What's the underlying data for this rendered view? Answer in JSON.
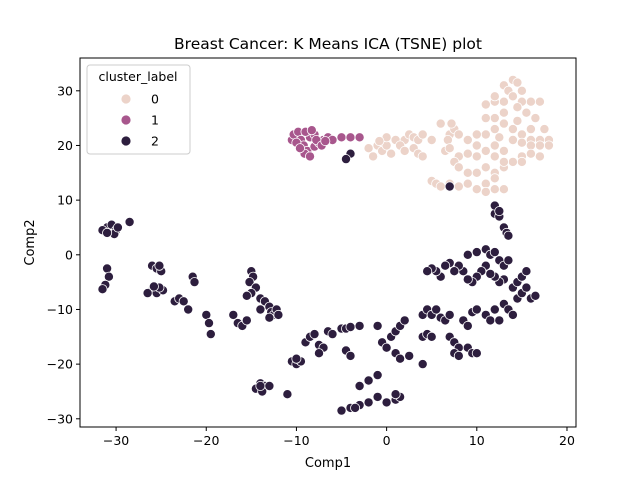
{
  "chart_data": {
    "type": "scatter",
    "title": "Breast Cancer: K Means ICA (TSNE) plot",
    "xlabel": "Comp1",
    "ylabel": "Comp2",
    "xlim": [
      -34,
      21
    ],
    "ylim": [
      -31.5,
      36
    ],
    "xticks": [
      -30,
      -20,
      -10,
      0,
      10,
      20
    ],
    "yticks": [
      -30,
      -20,
      -10,
      0,
      10,
      20,
      30
    ],
    "grid": false,
    "legend": {
      "title": "cluster_label",
      "placement": "upper-left"
    },
    "series": [
      {
        "name": "0",
        "color": "#ecd3c9",
        "points": [
          [
            13,
            31
          ],
          [
            14,
            32
          ],
          [
            14.5,
            31.5
          ],
          [
            13.5,
            30
          ],
          [
            15,
            30
          ],
          [
            14,
            29
          ],
          [
            13,
            28
          ],
          [
            12,
            28
          ],
          [
            11,
            27.5
          ],
          [
            12,
            29
          ],
          [
            15,
            28
          ],
          [
            14.5,
            27
          ],
          [
            13,
            26
          ],
          [
            16,
            28
          ],
          [
            17,
            28
          ],
          [
            15.5,
            26
          ],
          [
            16.5,
            25
          ],
          [
            17.5,
            23
          ],
          [
            16,
            23
          ],
          [
            15,
            22
          ],
          [
            14,
            21
          ],
          [
            16,
            21
          ],
          [
            17,
            21
          ],
          [
            18,
            21
          ],
          [
            18,
            20
          ],
          [
            17,
            20
          ],
          [
            16,
            20
          ],
          [
            15,
            20.5
          ],
          [
            14,
            23
          ],
          [
            13,
            24
          ],
          [
            12,
            25
          ],
          [
            11,
            25
          ],
          [
            12,
            23
          ],
          [
            11,
            22
          ],
          [
            10,
            22
          ],
          [
            9,
            21
          ],
          [
            10,
            20
          ],
          [
            12,
            20
          ],
          [
            13,
            19
          ],
          [
            11,
            19
          ],
          [
            10,
            18
          ],
          [
            9,
            18.5
          ],
          [
            8,
            18
          ],
          [
            7.5,
            17
          ],
          [
            8,
            16
          ],
          [
            9,
            15
          ],
          [
            10,
            15
          ],
          [
            11,
            16
          ],
          [
            12,
            15
          ],
          [
            13,
            16
          ],
          [
            14,
            17
          ],
          [
            15,
            18
          ],
          [
            16,
            18.5
          ],
          [
            17,
            18
          ],
          [
            15,
            17
          ],
          [
            12,
            14
          ],
          [
            11,
            13
          ],
          [
            12,
            12
          ],
          [
            11,
            11.5
          ],
          [
            10,
            12
          ],
          [
            9,
            13
          ],
          [
            13,
            12
          ],
          [
            12,
            18
          ],
          [
            13,
            17
          ],
          [
            7,
            22
          ],
          [
            7.5,
            23
          ],
          [
            7.2,
            24
          ],
          [
            6,
            24
          ],
          [
            6.8,
            21
          ],
          [
            8,
            22
          ],
          [
            1,
            21
          ],
          [
            2,
            21
          ],
          [
            2.5,
            22
          ],
          [
            3,
            21.5
          ],
          [
            3.5,
            21
          ],
          [
            4,
            22
          ],
          [
            5,
            21
          ],
          [
            -1,
            20
          ],
          [
            -0.5,
            19
          ],
          [
            0,
            20
          ],
          [
            0.5,
            18.5
          ],
          [
            -2,
            19.5
          ],
          [
            -1.5,
            18
          ],
          [
            1.5,
            20
          ],
          [
            2,
            19
          ],
          [
            3,
            19.5
          ],
          [
            3.5,
            18.5
          ],
          [
            4,
            18
          ],
          [
            5,
            13.5
          ],
          [
            5.5,
            13
          ],
          [
            6,
            12.5
          ],
          [
            7,
            13
          ],
          [
            8,
            12.5
          ],
          [
            0,
            21.5
          ],
          [
            -0.8,
            20.8
          ],
          [
            6.5,
            19
          ],
          [
            7,
            19.5
          ],
          [
            12.5,
            21.5
          ],
          [
            14.5,
            24.5
          ]
        ]
      },
      {
        "name": "1",
        "color": "#a8578d",
        "points": [
          [
            -10.5,
            21
          ],
          [
            -10.3,
            22
          ],
          [
            -9.8,
            22.5
          ],
          [
            -9.5,
            21
          ],
          [
            -9.2,
            20
          ],
          [
            -8.5,
            21.5
          ],
          [
            -8,
            22
          ],
          [
            -8.8,
            19
          ],
          [
            -9.1,
            18.5
          ],
          [
            -8.5,
            18
          ],
          [
            -8,
            19.8
          ],
          [
            -7.5,
            20.5
          ],
          [
            -7,
            21
          ],
          [
            -6.5,
            21.5
          ],
          [
            -6,
            21
          ],
          [
            -5,
            21.5
          ],
          [
            -4,
            21.5
          ],
          [
            -3,
            21.5
          ],
          [
            -9,
            22.5
          ],
          [
            -10,
            20.5
          ],
          [
            -7.8,
            21
          ],
          [
            -8.3,
            22.8
          ],
          [
            -9.6,
            19.5
          ],
          [
            -7.2,
            20
          ],
          [
            -6.8,
            20.8
          ]
        ]
      },
      {
        "name": "2",
        "color": "#2d1e3e",
        "points": [
          [
            -31,
            5
          ],
          [
            -30.5,
            5.5
          ],
          [
            -30,
            4.5
          ],
          [
            -31.5,
            4.5
          ],
          [
            -30.2,
            3.8
          ],
          [
            -31,
            4
          ],
          [
            -29.8,
            5
          ],
          [
            -28.5,
            6
          ],
          [
            -31,
            -2.5
          ],
          [
            -30.8,
            -4
          ],
          [
            -31.2,
            -5.5
          ],
          [
            -31.5,
            -6.3
          ],
          [
            -26,
            -2
          ],
          [
            -25.5,
            -2.5
          ],
          [
            -25,
            -3
          ],
          [
            -25.2,
            -2
          ],
          [
            -26,
            -6.5
          ],
          [
            -25.5,
            -7
          ],
          [
            -24.8,
            -6.5
          ],
          [
            -25.2,
            -6
          ],
          [
            -26.5,
            -7
          ],
          [
            -25.8,
            -5.8
          ],
          [
            -23.5,
            -8.5
          ],
          [
            -23,
            -8
          ],
          [
            -22.5,
            -8.5
          ],
          [
            -21.5,
            -4
          ],
          [
            -21.3,
            -5
          ],
          [
            -20,
            -11
          ],
          [
            -19.7,
            -12.5
          ],
          [
            -19.5,
            -14.5
          ],
          [
            -22,
            -10
          ],
          [
            -17,
            -11
          ],
          [
            -16.5,
            -12.5
          ],
          [
            -16,
            -13
          ],
          [
            -15.5,
            -12
          ],
          [
            -15,
            -3
          ],
          [
            -14.8,
            -4
          ],
          [
            -15.2,
            -5
          ],
          [
            -14.5,
            -6
          ],
          [
            -15,
            -7
          ],
          [
            -15.5,
            -7.5
          ],
          [
            -14,
            -8
          ],
          [
            -13.5,
            -8.5
          ],
          [
            -13,
            -9.5
          ],
          [
            -12.8,
            -10.5
          ],
          [
            -12.5,
            -11
          ],
          [
            -13,
            -11.5
          ],
          [
            -12.2,
            -10
          ],
          [
            -12,
            -11
          ],
          [
            -14,
            -10
          ],
          [
            -14,
            -23.5
          ],
          [
            -13.5,
            -24
          ],
          [
            -14.5,
            -24.5
          ],
          [
            -13.8,
            -25
          ],
          [
            -14,
            -24
          ],
          [
            -13,
            -24
          ],
          [
            -11,
            -25.5
          ],
          [
            -10.5,
            -19.5
          ],
          [
            -10,
            -20
          ],
          [
            -9.5,
            -19.5
          ],
          [
            -10,
            -19
          ],
          [
            -9,
            -16
          ],
          [
            -8.5,
            -15
          ],
          [
            -8,
            -14.5
          ],
          [
            -7.5,
            -16.5
          ],
          [
            -7,
            -17
          ],
          [
            -7.5,
            -18
          ],
          [
            -6.5,
            -14
          ],
          [
            -6,
            -14.5
          ],
          [
            -5,
            -13.5
          ],
          [
            -4.5,
            -13.5
          ],
          [
            -4,
            -13.2
          ],
          [
            -3,
            -13
          ],
          [
            -1,
            -13
          ],
          [
            -0.5,
            -16
          ],
          [
            0,
            -17
          ],
          [
            0.5,
            -15
          ],
          [
            1,
            -14
          ],
          [
            1.5,
            -13
          ],
          [
            2,
            -12
          ],
          [
            1,
            -18
          ],
          [
            1.5,
            -19
          ],
          [
            2.5,
            -18.5
          ],
          [
            4,
            -15
          ],
          [
            4.5,
            -14.5
          ],
          [
            5,
            -15
          ],
          [
            4,
            -11
          ],
          [
            4.5,
            -10
          ],
          [
            5,
            -11
          ],
          [
            6,
            -11.5
          ],
          [
            5.5,
            -10
          ],
          [
            6.5,
            -12
          ],
          [
            7,
            -11
          ],
          [
            7,
            -15
          ],
          [
            7.5,
            -16
          ],
          [
            8,
            -17
          ],
          [
            7.5,
            -18
          ],
          [
            8,
            -18.5
          ],
          [
            9,
            -17
          ],
          [
            9.5,
            -18
          ],
          [
            10,
            -18
          ],
          [
            8.5,
            -12
          ],
          [
            9,
            -13
          ],
          [
            9.5,
            -10.5
          ],
          [
            10,
            -10
          ],
          [
            11,
            -11
          ],
          [
            11.5,
            -12
          ],
          [
            12,
            -10
          ],
          [
            12.5,
            -12
          ],
          [
            13,
            -9
          ],
          [
            13.5,
            -10
          ],
          [
            14,
            -11
          ],
          [
            14.5,
            -8
          ],
          [
            15,
            -7
          ],
          [
            15.5,
            -6
          ],
          [
            16,
            -8
          ],
          [
            16.5,
            -7.5
          ],
          [
            14,
            -6
          ],
          [
            14.5,
            -5
          ],
          [
            15,
            -4
          ],
          [
            15.5,
            -3
          ],
          [
            13,
            -4.5
          ],
          [
            12.5,
            -5
          ],
          [
            12,
            -4
          ],
          [
            11.5,
            -3.5
          ],
          [
            11,
            -2
          ],
          [
            10.5,
            -3
          ],
          [
            10,
            -4
          ],
          [
            9.5,
            -5
          ],
          [
            9,
            -4.5
          ],
          [
            8.5,
            -3
          ],
          [
            8,
            -2
          ],
          [
            7.5,
            -3
          ],
          [
            7,
            -1.5
          ],
          [
            6.5,
            -2
          ],
          [
            6,
            -4
          ],
          [
            5.5,
            -3
          ],
          [
            5,
            -2.5
          ],
          [
            4.5,
            -3
          ],
          [
            9,
            0
          ],
          [
            10,
            0.5
          ],
          [
            11,
            1
          ],
          [
            11.5,
            0
          ],
          [
            12,
            0.5
          ],
          [
            12.5,
            -1
          ],
          [
            13,
            -2
          ],
          [
            13.5,
            -1
          ],
          [
            12,
            7.5
          ],
          [
            12.5,
            7
          ],
          [
            12,
            9
          ],
          [
            12.5,
            8
          ],
          [
            13,
            5
          ],
          [
            13.3,
            4
          ],
          [
            13.5,
            3.5
          ],
          [
            7,
            12.5
          ],
          [
            4,
            -20
          ],
          [
            -1,
            -22
          ],
          [
            -2,
            -23
          ],
          [
            -3,
            -24
          ],
          [
            -1,
            -26
          ],
          [
            0,
            -27
          ],
          [
            1,
            -26.5
          ],
          [
            1.5,
            -26
          ],
          [
            -2,
            -27
          ],
          [
            -3,
            -27.5
          ],
          [
            -4,
            -28
          ],
          [
            -5,
            -28.5
          ],
          [
            -3.5,
            -28
          ],
          [
            -4.5,
            -17.5
          ],
          [
            -4,
            -18.5
          ],
          [
            1,
            -25.5
          ],
          [
            -4,
            18.5
          ],
          [
            -4.5,
            17.5
          ]
        ]
      }
    ]
  }
}
